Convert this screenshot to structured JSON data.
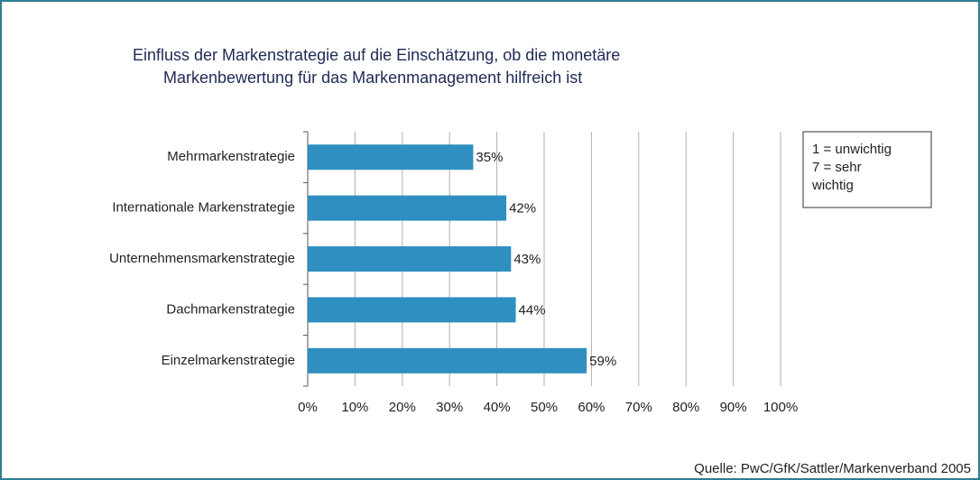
{
  "chart_data": {
    "type": "bar",
    "orientation": "horizontal",
    "title": [
      "Einfluss der Markenstrategie auf die Einschätzung, ob die monetäre",
      "Markenbewertung für das Markenmanagement hilfreich ist"
    ],
    "categories": [
      "Mehrmarkenstrategie",
      "Internationale Markenstrategie",
      "Unternehmensmarkenstrategie",
      "Dachmarkenstrategie",
      "Einzelmarkenstrategie"
    ],
    "values": [
      35,
      42,
      43,
      44,
      59
    ],
    "value_labels": [
      "35%",
      "42%",
      "43%",
      "44%",
      "59%"
    ],
    "color": "#2e8fc0",
    "xlim": [
      0,
      100
    ],
    "xticks": [
      {
        "value": 0,
        "label": "0%"
      },
      {
        "value": 10,
        "label": "10%"
      },
      {
        "value": 20,
        "label": "20%"
      },
      {
        "value": 30,
        "label": "30%"
      },
      {
        "value": 40,
        "label": "40%"
      },
      {
        "value": 50,
        "label": "50%"
      },
      {
        "value": 60,
        "label": "60%"
      },
      {
        "value": 70,
        "label": "70%"
      },
      {
        "value": 80,
        "label": "80%"
      },
      {
        "value": 90,
        "label": "90%"
      },
      {
        "value": 100,
        "label": "100%"
      }
    ],
    "grid": true,
    "annotation": [
      "1 = unwichtig",
      "7 = sehr",
      "wichtig"
    ],
    "source": "Quelle: PwC/GfK/Sattler/Markenverband 2005"
  }
}
